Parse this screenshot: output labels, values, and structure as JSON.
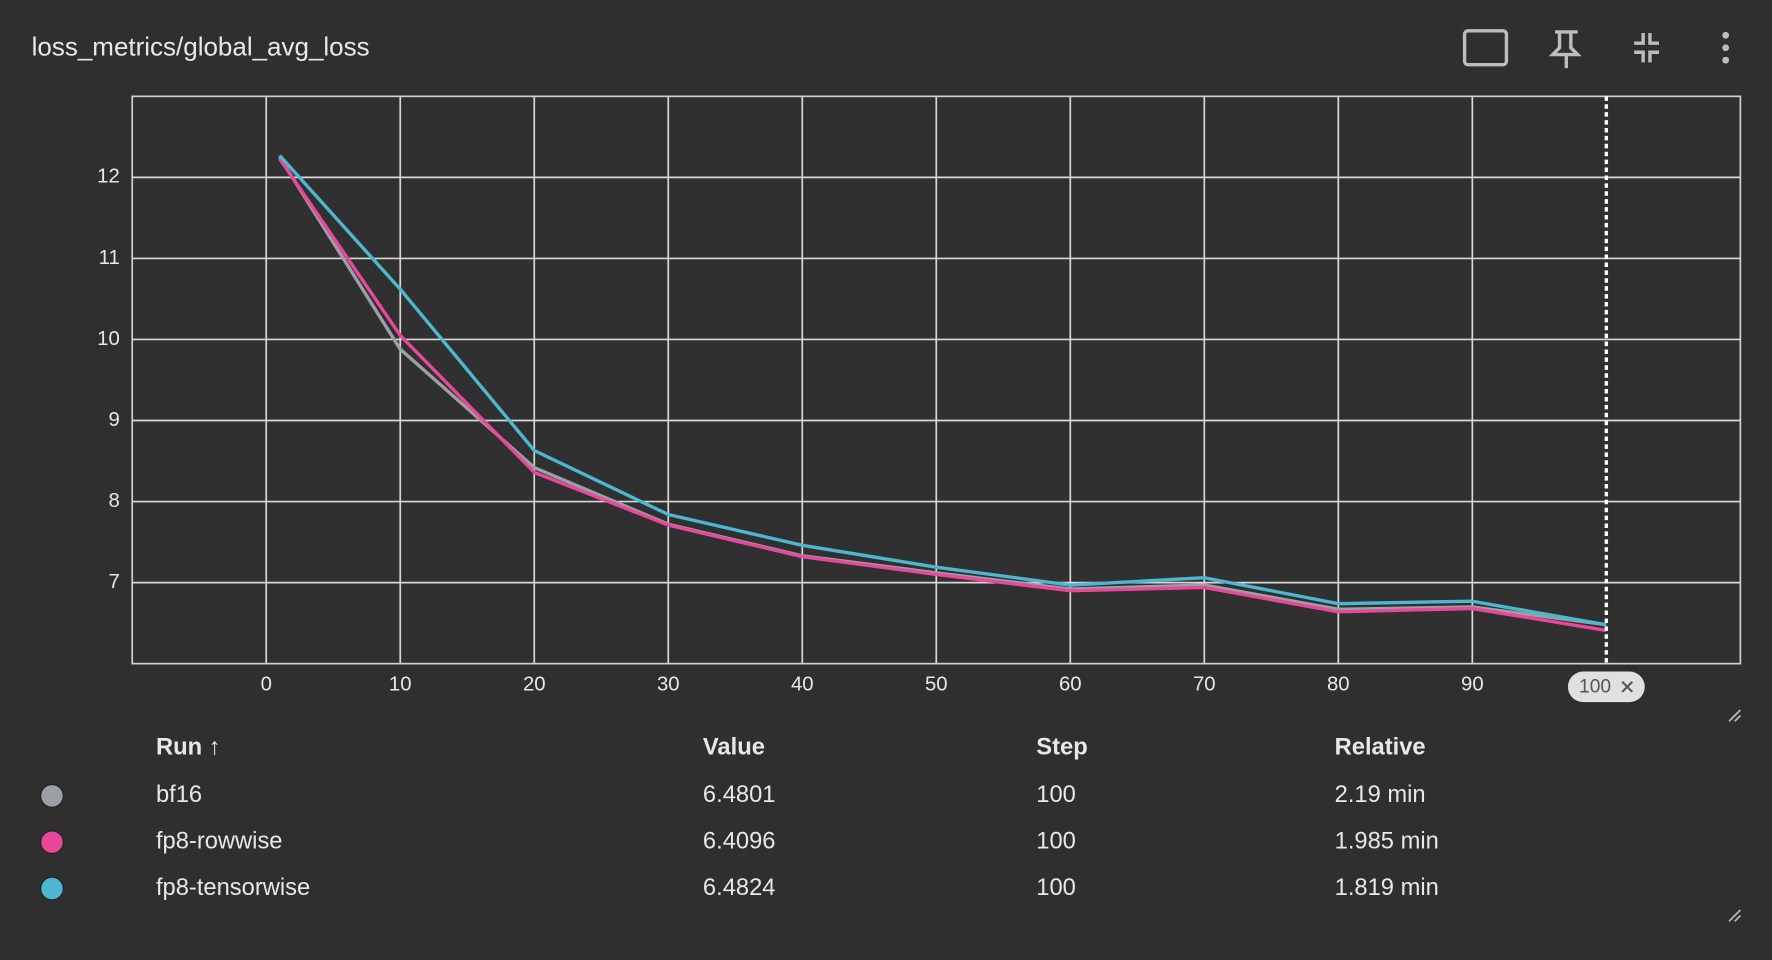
{
  "chart_data": {
    "type": "line",
    "title": "loss_metrics/global_avg_loss",
    "x": [
      1,
      10,
      20,
      30,
      40,
      50,
      60,
      70,
      80,
      90,
      100
    ],
    "series": [
      {
        "name": "bf16",
        "color": "#9aa0a6",
        "values": [
          12.25,
          9.88,
          8.42,
          7.72,
          7.33,
          7.12,
          6.92,
          6.97,
          6.67,
          6.7,
          6.48
        ]
      },
      {
        "name": "fp8-rowwise",
        "color": "#e8489a",
        "values": [
          12.23,
          10.05,
          8.36,
          7.71,
          7.32,
          7.1,
          6.9,
          6.94,
          6.64,
          6.68,
          6.41
        ]
      },
      {
        "name": "fp8-tensorwise",
        "color": "#4db6d0",
        "values": [
          12.27,
          10.62,
          8.63,
          7.84,
          7.46,
          7.19,
          6.97,
          7.06,
          6.74,
          6.77,
          6.48
        ]
      }
    ],
    "xlim": [
      -10,
      110
    ],
    "xticks": [
      0,
      10,
      20,
      30,
      40,
      50,
      60,
      70,
      80,
      90
    ],
    "ylim": [
      6,
      13
    ],
    "yticks": [
      7,
      8,
      9,
      10,
      11,
      12
    ],
    "grid": true,
    "cursor_step": 100
  },
  "table": {
    "columns": [
      "Run ↑",
      "Value",
      "Step",
      "Relative"
    ],
    "rows": [
      [
        "bf16",
        "6.4801",
        "100",
        "2.19 min"
      ],
      [
        "fp8-rowwise",
        "6.4096",
        "100",
        "1.985 min"
      ],
      [
        "fp8-tensorwise",
        "6.4824",
        "100",
        "1.819 min"
      ]
    ]
  }
}
